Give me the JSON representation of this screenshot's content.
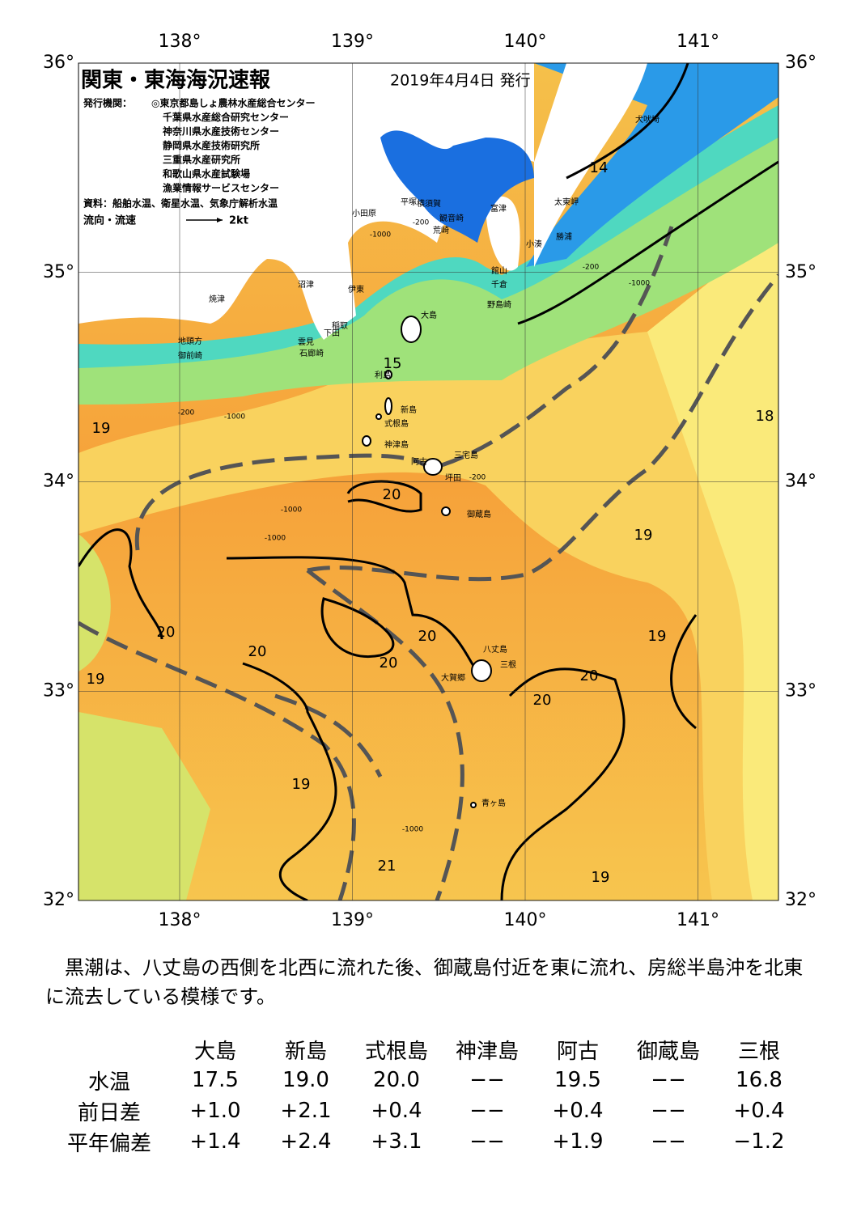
{
  "header": {
    "title": "関東・東海海況速報",
    "date": "2019年4月4日 発行",
    "publisher_label": "発行機関：",
    "publishers": [
      "◎東京都島しょ農林水産総合センター",
      "千葉県水産総合研究センター",
      "神奈川県水産技術センター",
      "静岡県水産技術研究所",
      "三重県水産研究所",
      "和歌山県水産試験場",
      "漁業情報サービスセンター"
    ],
    "source": "資料：船舶水温、衛星水温、気象庁解析水温",
    "legend_label": "流向・流速",
    "legend_scale": "2kt"
  },
  "map": {
    "lon_ticks": [
      {
        "value": 138,
        "label": "138°"
      },
      {
        "value": 139,
        "label": "139°"
      },
      {
        "value": 140,
        "label": "140°"
      },
      {
        "value": 141,
        "label": "141°"
      }
    ],
    "lat_ticks": [
      {
        "value": 36,
        "label": "36°"
      },
      {
        "value": 35,
        "label": "35°"
      },
      {
        "value": 34,
        "label": "34°"
      },
      {
        "value": 33,
        "label": "33°"
      },
      {
        "value": 32,
        "label": "32°"
      }
    ],
    "place_names": [
      "犬吠埼",
      "太東岬",
      "勝浦",
      "小湊",
      "富津",
      "横須賀",
      "平塚",
      "小田原",
      "観音崎",
      "荒崎",
      "館山",
      "千倉",
      "野島崎",
      "沼津",
      "伊東",
      "焼津",
      "稲取",
      "下田",
      "雲見",
      "石廊崎",
      "地頭方",
      "御前崎",
      "大島",
      "利島",
      "新島",
      "式根島",
      "神津島",
      "三宅島",
      "阿古",
      "坪田",
      "御蔵島",
      "八丈島",
      "三根",
      "大賀郷",
      "青ヶ島"
    ],
    "isotherm_labels": [
      14,
      15,
      19,
      18,
      20,
      19,
      20,
      20,
      20,
      19,
      20,
      19,
      20,
      20,
      19,
      21,
      19
    ],
    "depth_labels": [
      -200,
      -1000,
      -200,
      -1000,
      -200,
      -1000,
      -1000,
      -1000,
      -200,
      -1000
    ]
  },
  "description": "黒潮は、八丈島の西側を北西に流れた後、御蔵島付近を東に流れ、房総半島沖を北東に流去している模様です。",
  "table": {
    "columns": [
      "大島",
      "新島",
      "式根島",
      "神津島",
      "阿古",
      "御蔵島",
      "三根"
    ],
    "rows": [
      [
        "水温",
        "17.5",
        "19.0",
        "20.0",
        "−−",
        "19.5",
        "−−",
        "16.8"
      ],
      [
        "前日差",
        "+1.0",
        "+2.1",
        "+0.4",
        "−−",
        "+0.4",
        "−−",
        "+0.4"
      ],
      [
        "平年偏差",
        "+1.4",
        "+2.4",
        "+3.1",
        "−−",
        "+1.9",
        "−−",
        "−1.2"
      ]
    ]
  }
}
